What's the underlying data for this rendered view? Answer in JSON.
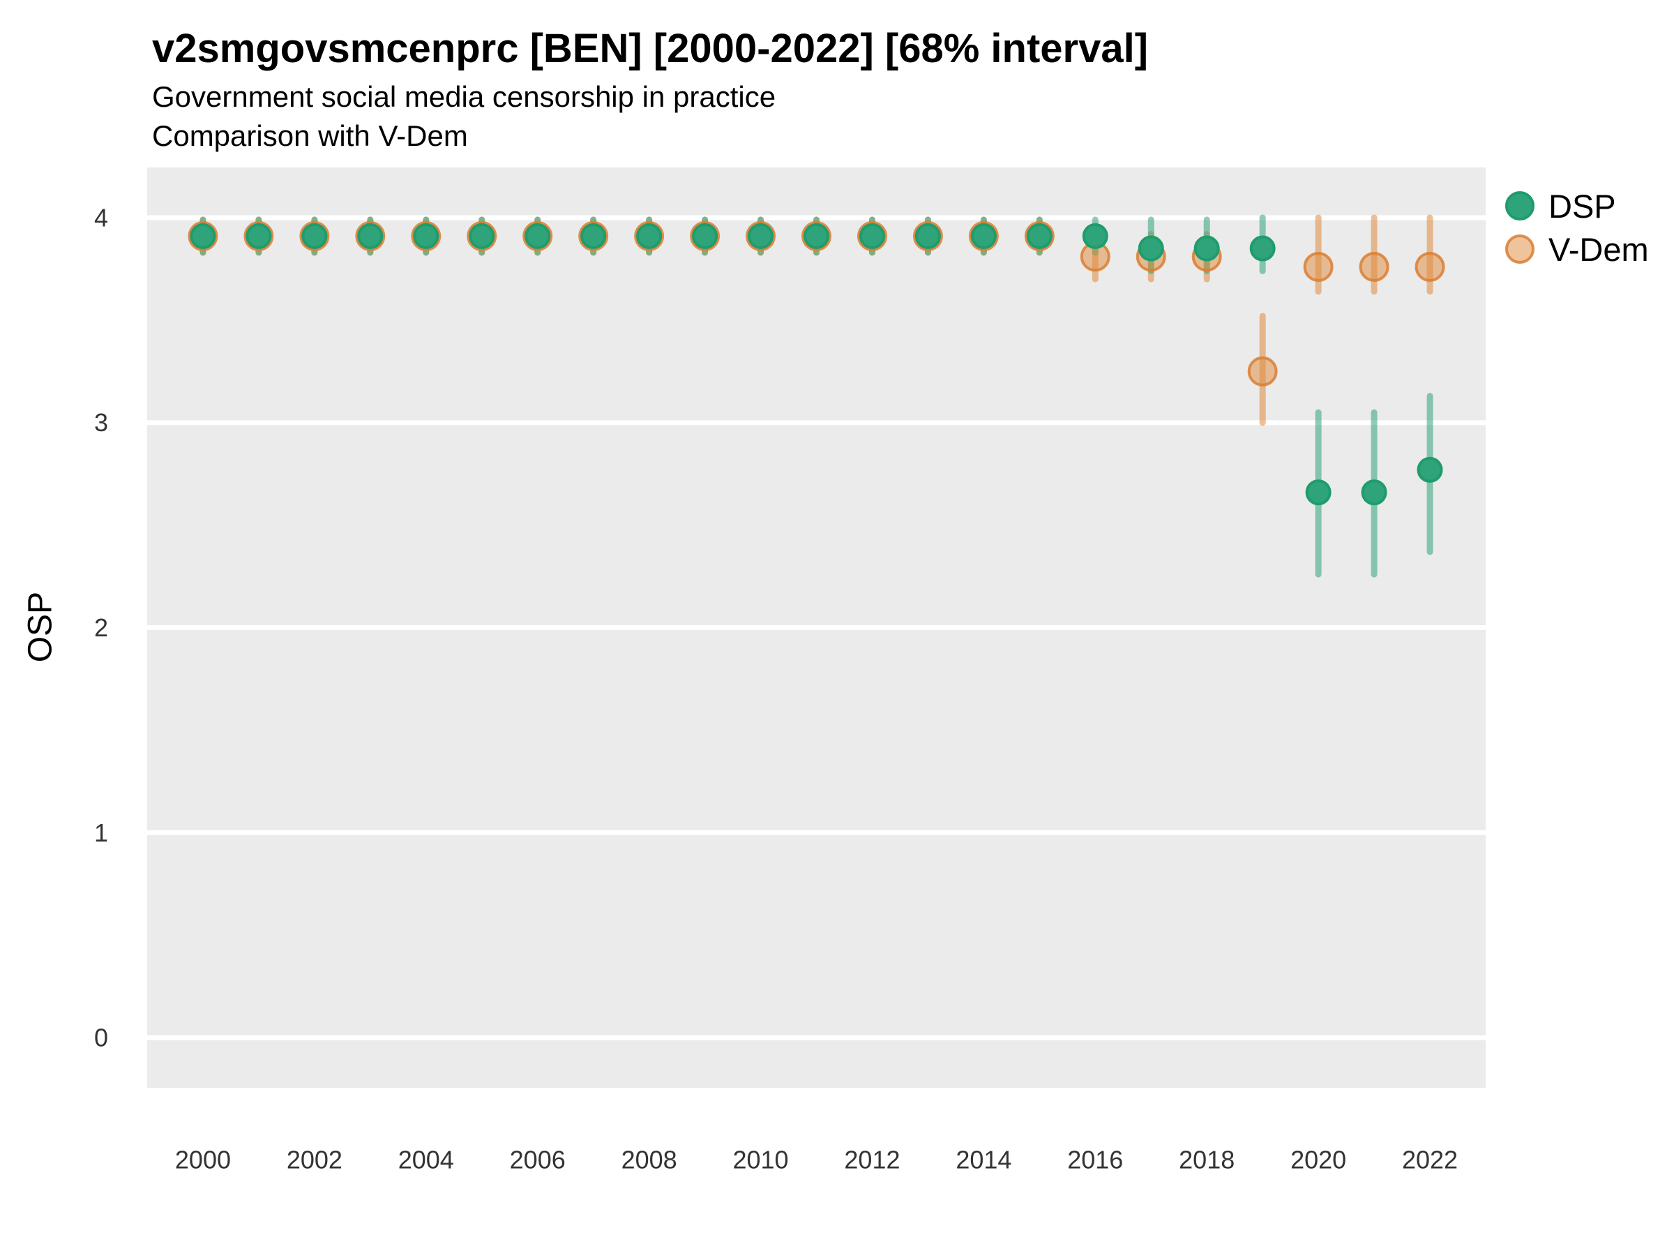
{
  "header": {
    "title": "v2smgovsmcenprc [BEN] [2000-2022] [68% interval]",
    "subtitle1": "Government social media censorship in practice",
    "subtitle2": "Comparison with V-Dem"
  },
  "axes": {
    "y_label": "OSP",
    "y_ticks": [
      4,
      3,
      2,
      1,
      0
    ],
    "x_ticks": [
      2000,
      2002,
      2004,
      2006,
      2008,
      2010,
      2012,
      2014,
      2016,
      2018,
      2020,
      2022
    ]
  },
  "legend": {
    "items": [
      {
        "label": "DSP",
        "color": "#2FA47A"
      },
      {
        "label": "V-Dem",
        "color": "#E08A3C"
      }
    ]
  },
  "colors": {
    "dsp_fill": "#2FA47A",
    "dsp_stroke": "#1F9C6C",
    "vdem_base": "#E08A3C",
    "vdem_stroke": "#DB7E31",
    "panel_bg": "#EBEBEB",
    "gridline": "#FFFFFF",
    "tick_text": "#333333"
  },
  "chart_data": {
    "type": "scatter",
    "subtype": "pointrange",
    "title": "v2smgovsmcenprc [BEN] [2000-2022] [68% interval]",
    "subtitle": "Government social media censorship in practice — Comparison with V-Dem",
    "xlabel": "",
    "ylabel": "OSP",
    "interval": "68%",
    "xlim": [
      1999,
      2023
    ],
    "ylim": [
      -0.245,
      4.245
    ],
    "grid": "horizontal-major-only",
    "legend_position": "right-top",
    "x": [
      2000,
      2001,
      2002,
      2003,
      2004,
      2005,
      2006,
      2007,
      2008,
      2009,
      2010,
      2011,
      2012,
      2013,
      2014,
      2015,
      2016,
      2017,
      2018,
      2019,
      2020,
      2021,
      2022
    ],
    "series": [
      {
        "name": "V-Dem",
        "values": [
          3.91,
          3.91,
          3.91,
          3.91,
          3.91,
          3.91,
          3.91,
          3.91,
          3.91,
          3.91,
          3.91,
          3.91,
          3.91,
          3.91,
          3.91,
          3.91,
          3.81,
          3.81,
          3.81,
          3.25,
          3.76,
          3.76,
          3.76
        ],
        "lower": [
          3.83,
          3.83,
          3.83,
          3.83,
          3.83,
          3.83,
          3.83,
          3.83,
          3.83,
          3.83,
          3.83,
          3.83,
          3.83,
          3.83,
          3.83,
          3.83,
          3.7,
          3.7,
          3.7,
          3.0,
          3.64,
          3.64,
          3.64
        ],
        "upper": [
          3.99,
          3.99,
          3.99,
          3.99,
          3.99,
          3.99,
          3.99,
          3.99,
          3.99,
          3.99,
          3.99,
          3.99,
          3.99,
          3.99,
          3.99,
          3.99,
          3.92,
          3.92,
          3.92,
          3.52,
          4.0,
          4.0,
          4.0
        ]
      },
      {
        "name": "DSP",
        "values": [
          3.91,
          3.91,
          3.91,
          3.91,
          3.91,
          3.91,
          3.91,
          3.91,
          3.91,
          3.91,
          3.91,
          3.91,
          3.91,
          3.91,
          3.91,
          3.91,
          3.91,
          3.85,
          3.85,
          3.85,
          2.66,
          2.66,
          2.77
        ],
        "lower": [
          3.83,
          3.83,
          3.83,
          3.83,
          3.83,
          3.83,
          3.83,
          3.83,
          3.83,
          3.83,
          3.83,
          3.83,
          3.83,
          3.83,
          3.83,
          3.83,
          3.83,
          3.74,
          3.74,
          3.74,
          2.26,
          2.26,
          2.37
        ],
        "upper": [
          3.99,
          3.99,
          3.99,
          3.99,
          3.99,
          3.99,
          3.99,
          3.99,
          3.99,
          3.99,
          3.99,
          3.99,
          3.99,
          3.99,
          3.99,
          3.99,
          3.99,
          3.99,
          3.99,
          4.0,
          3.05,
          3.05,
          3.13
        ]
      }
    ]
  }
}
